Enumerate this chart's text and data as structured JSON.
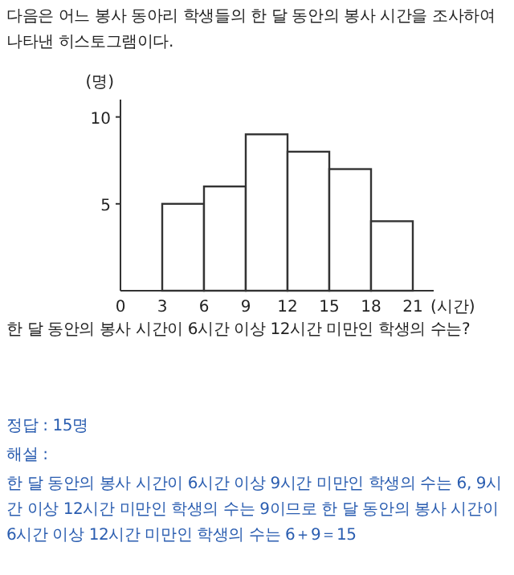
{
  "chart_data": {
    "type": "histogram",
    "title": "다음은 어느 봉사 동아리 학생들의 한 달 동안의 봉사 시간을 조사하여 나타낸 히스토그램이다.",
    "ylabel": "(명)",
    "xlabel": "(시간)",
    "bins": [
      3,
      6,
      9,
      12,
      15,
      18,
      21
    ],
    "values": [
      5,
      6,
      9,
      8,
      7,
      4
    ],
    "color": "#ffffff",
    "xlim": [
      0,
      22.5
    ],
    "ylim": [
      0,
      11
    ],
    "xticks": [
      0,
      3,
      6,
      9,
      12,
      15,
      18,
      21
    ],
    "yticks": [
      5,
      10
    ],
    "grid": false,
    "annotations": [
      "한 달 동안의 봉사 시간이 6시간 이상 12시간 미만인 학생의 수는?",
      "정답 : 15명",
      "해설 :",
      "한 달 동안의 봉사 시간이 6시간 이상 9시간 미만인 학생의 수는 6, 9시간 이상 12시간 미만인 학생의 수는 9이므로 한 달 동안의 봉사 시간이 6시간 이상 12시간 미만인 학생의 수는 6＋9＝15"
    ]
  }
}
